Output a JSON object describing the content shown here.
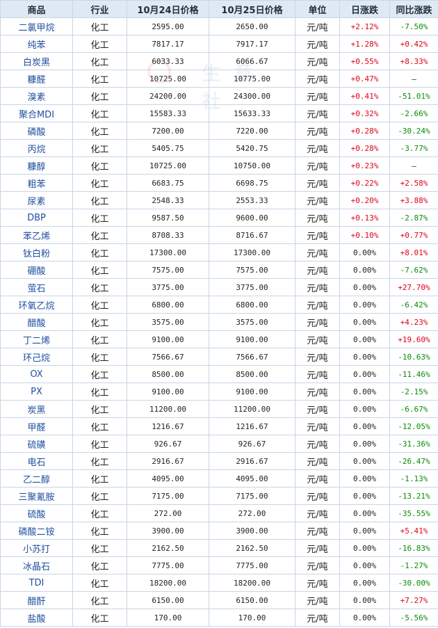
{
  "headers": [
    "商品",
    "行业",
    "10月24日价格",
    "10月25日价格",
    "单位",
    "日涨跌",
    "同比涨跌"
  ],
  "rows": [
    {
      "name": "二氯甲烷",
      "industry": "化工",
      "price_a": "2595.00",
      "price_b": "2650.00",
      "unit": "元/吨",
      "daily": "+2.12%",
      "yoy": "-7.50%"
    },
    {
      "name": "纯苯",
      "industry": "化工",
      "price_a": "7817.17",
      "price_b": "7917.17",
      "unit": "元/吨",
      "daily": "+1.28%",
      "yoy": "+0.42%"
    },
    {
      "name": "白炭黑",
      "industry": "化工",
      "price_a": "6033.33",
      "price_b": "6066.67",
      "unit": "元/吨",
      "daily": "+0.55%",
      "yoy": "+8.33%"
    },
    {
      "name": "糠醛",
      "industry": "化工",
      "price_a": "10725.00",
      "price_b": "10775.00",
      "unit": "元/吨",
      "daily": "+0.47%",
      "yoy": "—"
    },
    {
      "name": "溴素",
      "industry": "化工",
      "price_a": "24200.00",
      "price_b": "24300.00",
      "unit": "元/吨",
      "daily": "+0.41%",
      "yoy": "-51.01%"
    },
    {
      "name": "聚合MDI",
      "industry": "化工",
      "price_a": "15583.33",
      "price_b": "15633.33",
      "unit": "元/吨",
      "daily": "+0.32%",
      "yoy": "-2.66%"
    },
    {
      "name": "磷酸",
      "industry": "化工",
      "price_a": "7200.00",
      "price_b": "7220.00",
      "unit": "元/吨",
      "daily": "+0.28%",
      "yoy": "-30.24%"
    },
    {
      "name": "丙烷",
      "industry": "化工",
      "price_a": "5405.75",
      "price_b": "5420.75",
      "unit": "元/吨",
      "daily": "+0.28%",
      "yoy": "-3.77%"
    },
    {
      "name": "糠醇",
      "industry": "化工",
      "price_a": "10725.00",
      "price_b": "10750.00",
      "unit": "元/吨",
      "daily": "+0.23%",
      "yoy": "—"
    },
    {
      "name": "粗苯",
      "industry": "化工",
      "price_a": "6683.75",
      "price_b": "6698.75",
      "unit": "元/吨",
      "daily": "+0.22%",
      "yoy": "+2.58%"
    },
    {
      "name": "尿素",
      "industry": "化工",
      "price_a": "2548.33",
      "price_b": "2553.33",
      "unit": "元/吨",
      "daily": "+0.20%",
      "yoy": "+3.88%"
    },
    {
      "name": "DBP",
      "industry": "化工",
      "price_a": "9587.50",
      "price_b": "9600.00",
      "unit": "元/吨",
      "daily": "+0.13%",
      "yoy": "-2.87%"
    },
    {
      "name": "苯乙烯",
      "industry": "化工",
      "price_a": "8708.33",
      "price_b": "8716.67",
      "unit": "元/吨",
      "daily": "+0.10%",
      "yoy": "+0.77%"
    },
    {
      "name": "钛白粉",
      "industry": "化工",
      "price_a": "17300.00",
      "price_b": "17300.00",
      "unit": "元/吨",
      "daily": "0.00%",
      "yoy": "+8.01%"
    },
    {
      "name": "硼酸",
      "industry": "化工",
      "price_a": "7575.00",
      "price_b": "7575.00",
      "unit": "元/吨",
      "daily": "0.00%",
      "yoy": "-7.62%"
    },
    {
      "name": "萤石",
      "industry": "化工",
      "price_a": "3775.00",
      "price_b": "3775.00",
      "unit": "元/吨",
      "daily": "0.00%",
      "yoy": "+27.70%"
    },
    {
      "name": "环氧乙烷",
      "industry": "化工",
      "price_a": "6800.00",
      "price_b": "6800.00",
      "unit": "元/吨",
      "daily": "0.00%",
      "yoy": "-6.42%"
    },
    {
      "name": "醋酸",
      "industry": "化工",
      "price_a": "3575.00",
      "price_b": "3575.00",
      "unit": "元/吨",
      "daily": "0.00%",
      "yoy": "+4.23%"
    },
    {
      "name": "丁二烯",
      "industry": "化工",
      "price_a": "9100.00",
      "price_b": "9100.00",
      "unit": "元/吨",
      "daily": "0.00%",
      "yoy": "+19.60%"
    },
    {
      "name": "环己烷",
      "industry": "化工",
      "price_a": "7566.67",
      "price_b": "7566.67",
      "unit": "元/吨",
      "daily": "0.00%",
      "yoy": "-10.63%"
    },
    {
      "name": "OX",
      "industry": "化工",
      "price_a": "8500.00",
      "price_b": "8500.00",
      "unit": "元/吨",
      "daily": "0.00%",
      "yoy": "-11.46%"
    },
    {
      "name": "PX",
      "industry": "化工",
      "price_a": "9100.00",
      "price_b": "9100.00",
      "unit": "元/吨",
      "daily": "0.00%",
      "yoy": "-2.15%"
    },
    {
      "name": "炭黑",
      "industry": "化工",
      "price_a": "11200.00",
      "price_b": "11200.00",
      "unit": "元/吨",
      "daily": "0.00%",
      "yoy": "-6.67%"
    },
    {
      "name": "甲醛",
      "industry": "化工",
      "price_a": "1216.67",
      "price_b": "1216.67",
      "unit": "元/吨",
      "daily": "0.00%",
      "yoy": "-12.05%"
    },
    {
      "name": "硫磺",
      "industry": "化工",
      "price_a": "926.67",
      "price_b": "926.67",
      "unit": "元/吨",
      "daily": "0.00%",
      "yoy": "-31.36%"
    },
    {
      "name": "电石",
      "industry": "化工",
      "price_a": "2916.67",
      "price_b": "2916.67",
      "unit": "元/吨",
      "daily": "0.00%",
      "yoy": "-26.47%"
    },
    {
      "name": "乙二醇",
      "industry": "化工",
      "price_a": "4095.00",
      "price_b": "4095.00",
      "unit": "元/吨",
      "daily": "0.00%",
      "yoy": "-1.13%"
    },
    {
      "name": "三聚氰胺",
      "industry": "化工",
      "price_a": "7175.00",
      "price_b": "7175.00",
      "unit": "元/吨",
      "daily": "0.00%",
      "yoy": "-13.21%"
    },
    {
      "name": "硫酸",
      "industry": "化工",
      "price_a": "272.00",
      "price_b": "272.00",
      "unit": "元/吨",
      "daily": "0.00%",
      "yoy": "-35.55%"
    },
    {
      "name": "磷酸二铵",
      "industry": "化工",
      "price_a": "3900.00",
      "price_b": "3900.00",
      "unit": "元/吨",
      "daily": "0.00%",
      "yoy": "+5.41%"
    },
    {
      "name": "小苏打",
      "industry": "化工",
      "price_a": "2162.50",
      "price_b": "2162.50",
      "unit": "元/吨",
      "daily": "0.00%",
      "yoy": "-16.83%"
    },
    {
      "name": "冰晶石",
      "industry": "化工",
      "price_a": "7775.00",
      "price_b": "7775.00",
      "unit": "元/吨",
      "daily": "0.00%",
      "yoy": "-1.27%"
    },
    {
      "name": "TDI",
      "industry": "化工",
      "price_a": "18200.00",
      "price_b": "18200.00",
      "unit": "元/吨",
      "daily": "0.00%",
      "yoy": "-30.00%"
    },
    {
      "name": "醋酐",
      "industry": "化工",
      "price_a": "6150.00",
      "price_b": "6150.00",
      "unit": "元/吨",
      "daily": "0.00%",
      "yoy": "+7.27%"
    },
    {
      "name": "盐酸",
      "industry": "化工",
      "price_a": "170.00",
      "price_b": "170.00",
      "unit": "元/吨",
      "daily": "0.00%",
      "yoy": "-5.56%"
    }
  ],
  "colors": {
    "up": "#e0001b",
    "down": "#0a8a0a",
    "header_bg": "#dfe9f4",
    "border": "#c7d6e6",
    "name": "#1f4fa0"
  }
}
